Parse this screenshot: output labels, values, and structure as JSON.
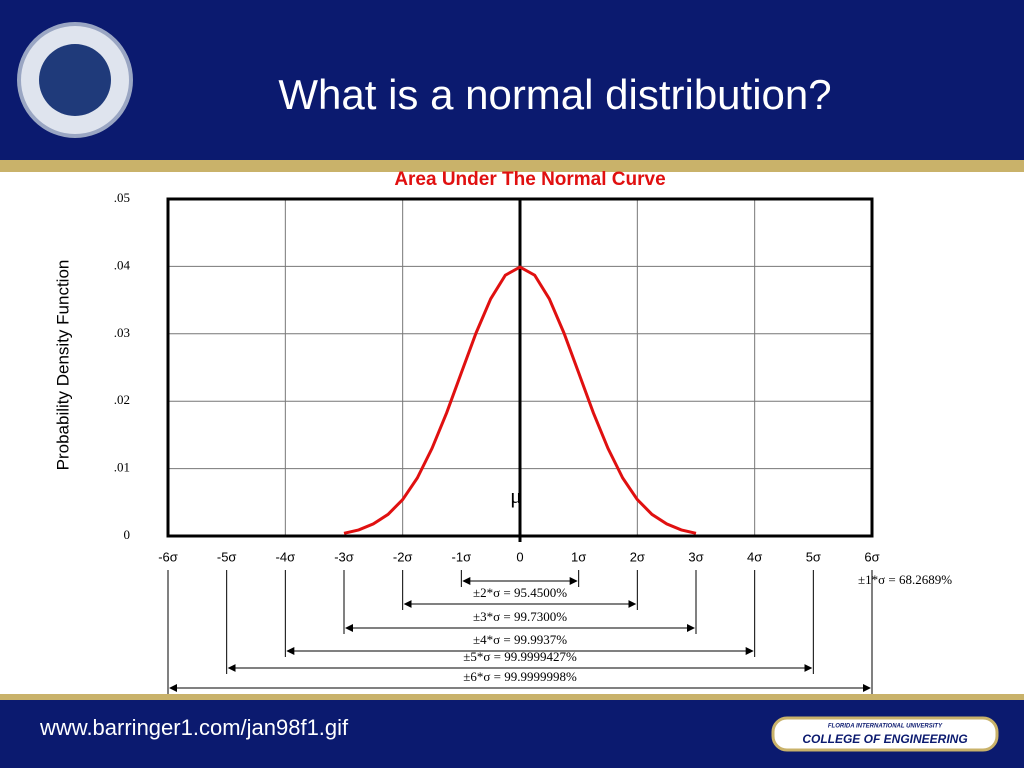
{
  "slide": {
    "title": "What is a normal distribution?",
    "footer_url": "www.barringer1.com/jan98f1.gif",
    "badge_top": "FLORIDA INTERNATIONAL UNIVERSITY",
    "badge_main": "COLLEGE OF ENGINEERING"
  },
  "chart_data": {
    "type": "line",
    "title": "Area Under The Normal Curve",
    "y_label": "Probability Density Function",
    "x": [
      -3,
      -2.75,
      -2.5,
      -2.25,
      -2,
      -1.75,
      -1.5,
      -1.25,
      -1,
      -0.75,
      -0.5,
      -0.25,
      0,
      0.25,
      0.5,
      0.75,
      1,
      1.25,
      1.5,
      1.75,
      2,
      2.25,
      2.5,
      2.75,
      3
    ],
    "values": [
      0.0004,
      0.0009,
      0.0018,
      0.0032,
      0.0054,
      0.0086,
      0.013,
      0.0183,
      0.0242,
      0.0301,
      0.0352,
      0.0387,
      0.0399,
      0.0387,
      0.0352,
      0.0301,
      0.0242,
      0.0183,
      0.013,
      0.0086,
      0.0054,
      0.0032,
      0.0018,
      0.0009,
      0.0004
    ],
    "color": "#e01010",
    "xlim": [
      -6,
      6
    ],
    "xticks": [
      {
        "value": -6,
        "label": "-6σ"
      },
      {
        "value": -5,
        "label": "-5σ"
      },
      {
        "value": -4,
        "label": "-4σ"
      },
      {
        "value": -3,
        "label": "-3σ"
      },
      {
        "value": -2,
        "label": "-2σ"
      },
      {
        "value": -1,
        "label": "-1σ"
      },
      0,
      {
        "value": 1,
        "label": "1σ"
      },
      {
        "value": 2,
        "label": "2σ"
      },
      {
        "value": 3,
        "label": "3σ"
      },
      {
        "value": 4,
        "label": "4σ"
      },
      {
        "value": 5,
        "label": "5σ"
      },
      {
        "value": 6,
        "label": "6σ"
      }
    ],
    "ylim": [
      0,
      0.05
    ],
    "yticks": [
      0,
      {
        "value": 0.01,
        "label": ".01"
      },
      {
        "value": 0.02,
        "label": ".02"
      },
      {
        "value": 0.03,
        "label": ".03"
      },
      {
        "value": 0.04,
        "label": ".04"
      },
      {
        "value": 0.05,
        "label": ".05"
      }
    ],
    "grid": true,
    "mean_label": "μ",
    "annotations": [
      {
        "x": [
          -1,
          1
        ],
        "label": "±1*σ = 68.2689%"
      },
      {
        "x": [
          -2,
          2
        ],
        "label": "±2*σ = 95.4500%"
      },
      {
        "x": [
          -3,
          3
        ],
        "label": "±3*σ = 99.7300%"
      },
      {
        "x": [
          -4,
          4
        ],
        "label": "±4*σ = 99.9937%"
      },
      {
        "x": [
          -5,
          5
        ],
        "label": "±5*σ = 99.9999427%"
      },
      {
        "x": [
          -6,
          6
        ],
        "label": "±6*σ = 99.9999998%"
      }
    ]
  }
}
